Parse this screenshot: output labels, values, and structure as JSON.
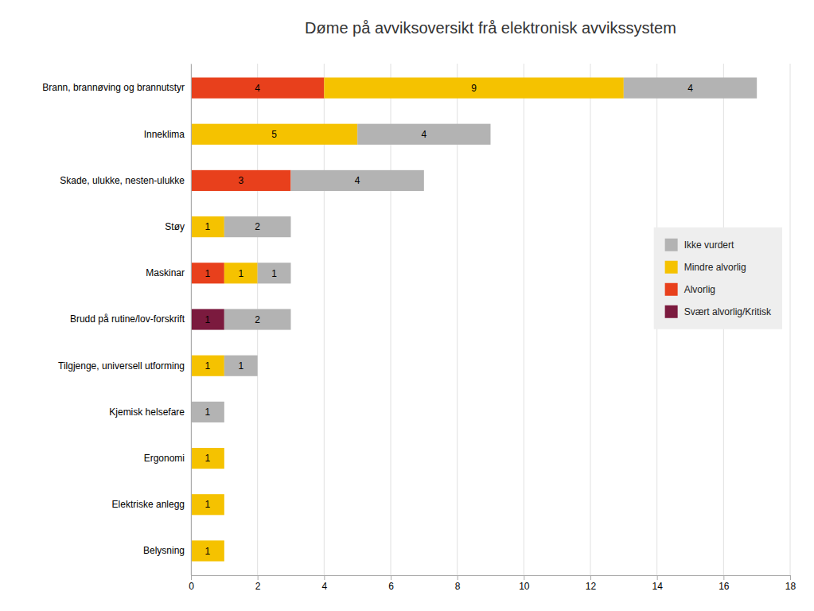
{
  "chart_data": {
    "type": "bar",
    "orientation": "horizontal",
    "stacked": true,
    "title": "Døme på avviksoversikt frå elektronisk avvikssystem",
    "categories": [
      "Brann, brannøving og brannutstyr",
      "Inneklima",
      "Skade, ulukke, nesten-ulukke",
      "Støy",
      "Maskinar",
      "Brudd på rutine/lov-forskrift",
      "Tilgjenge, universell utforming",
      "Kjemisk helsefare",
      "Ergonomi",
      "Elektriske anlegg",
      "Belysning"
    ],
    "series": [
      {
        "name": "Svært alvorlig/Kritisk",
        "color": "#7b1a3e",
        "values": [
          0,
          0,
          0,
          0,
          0,
          1,
          0,
          0,
          0,
          0,
          0
        ]
      },
      {
        "name": "Alvorlig",
        "color": "#e8401c",
        "values": [
          4,
          0,
          3,
          0,
          1,
          0,
          0,
          0,
          0,
          0,
          0
        ]
      },
      {
        "name": "Mindre alvorlig",
        "color": "#f5c200",
        "values": [
          9,
          5,
          0,
          1,
          1,
          0,
          1,
          0,
          1,
          1,
          1
        ]
      },
      {
        "name": "Ikke vurdert",
        "color": "#b3b3b3",
        "values": [
          4,
          4,
          4,
          2,
          1,
          2,
          1,
          1,
          0,
          0,
          0
        ]
      }
    ],
    "xlim": [
      0,
      18
    ],
    "xticks": [
      0,
      2,
      4,
      6,
      8,
      10,
      12,
      14,
      16,
      18
    ],
    "grid": true,
    "legend": "upper right",
    "data_labels": true
  }
}
